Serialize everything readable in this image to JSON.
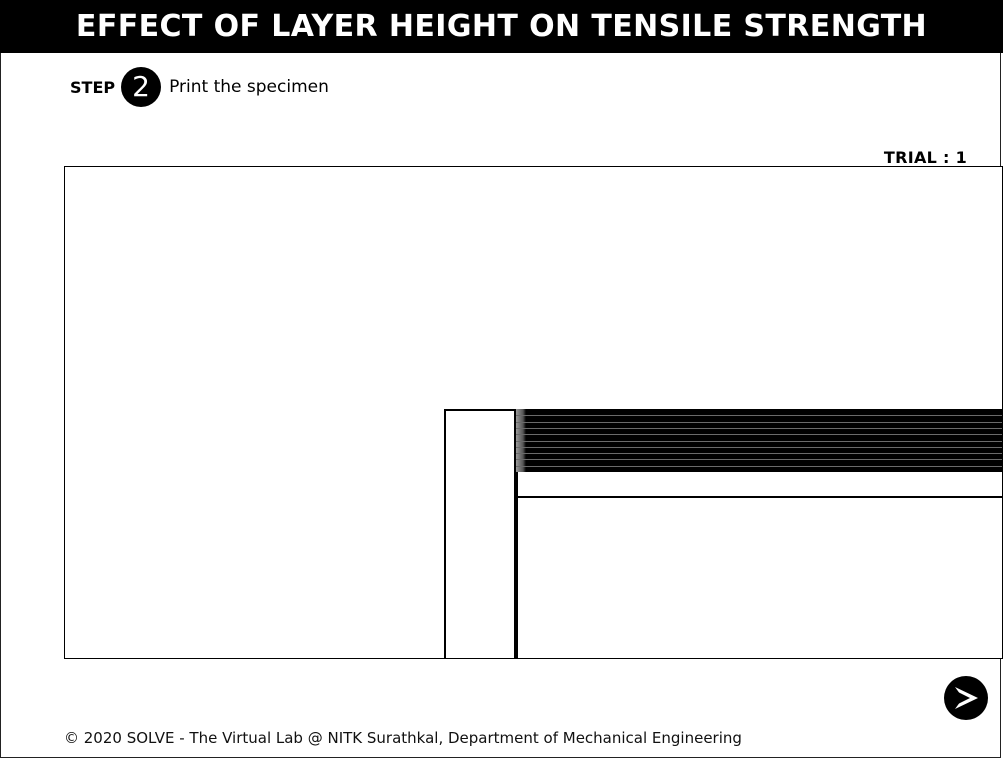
{
  "header": {
    "title": "EFFECT OF LAYER HEIGHT ON TENSILE STRENGTH"
  },
  "step": {
    "label": "STEP",
    "number": "2",
    "instruction": "Print the specimen"
  },
  "trial": {
    "text": "TRIAL : 1"
  },
  "printer_scene": {
    "printed_layer_count": 10
  },
  "navigation": {
    "next_icon": "next-arrow-icon"
  },
  "footer": {
    "copyright": "© 2020 SOLVE - The Virtual Lab @ NITK Surathkal, Department of Mechanical Engineering"
  },
  "colors": {
    "title_background": "#000000",
    "title_text": "#ffffff",
    "layers": "#000000",
    "layer_separator": "#6a6a6a"
  }
}
